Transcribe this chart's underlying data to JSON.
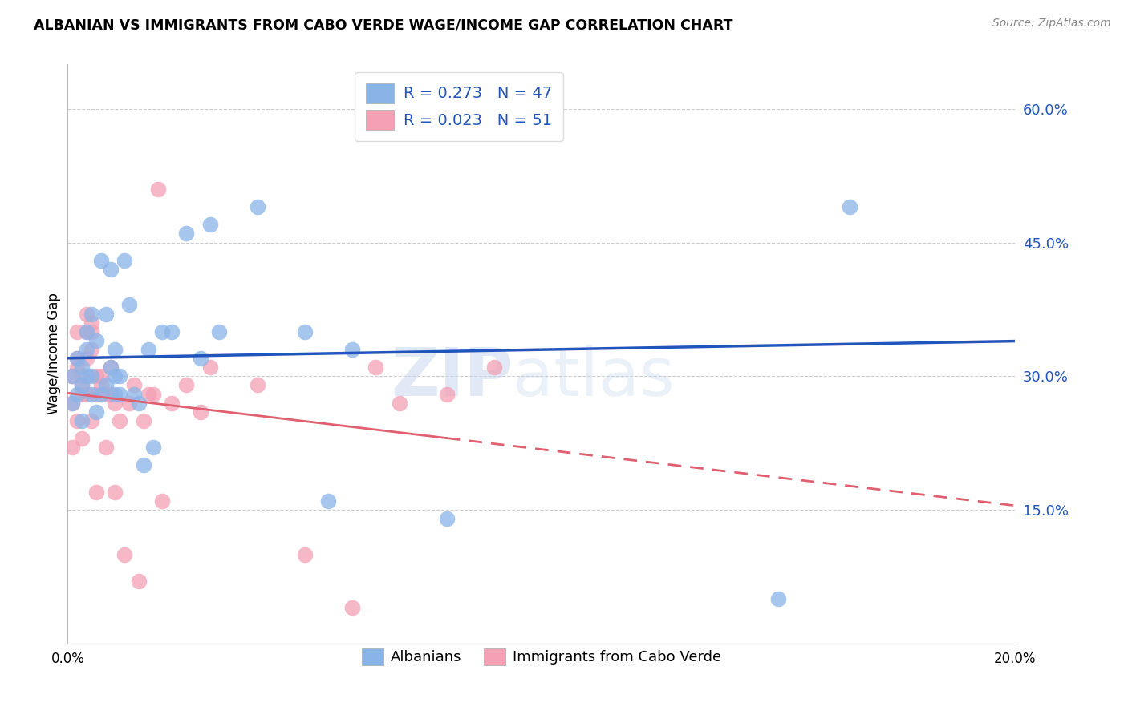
{
  "title": "ALBANIAN VS IMMIGRANTS FROM CABO VERDE WAGE/INCOME GAP CORRELATION CHART",
  "source": "Source: ZipAtlas.com",
  "ylabel": "Wage/Income Gap",
  "y_ticks": [
    0.15,
    0.3,
    0.45,
    0.6
  ],
  "y_tick_labels": [
    "15.0%",
    "30.0%",
    "45.0%",
    "60.0%"
  ],
  "xlim": [
    0.0,
    0.2
  ],
  "ylim": [
    0.0,
    0.65
  ],
  "R_albanian": 0.273,
  "N_albanian": 47,
  "R_caboverde": 0.023,
  "N_caboverde": 51,
  "albanian_color": "#8ab4e8",
  "caboverde_color": "#f4a0b5",
  "albanian_line_color": "#2255bb",
  "caboverde_line_color": "#e06070",
  "watermark_zip": "ZIP",
  "watermark_atlas": "atlas",
  "legend_albanian": "Albanians",
  "legend_caboverde": "Immigrants from Cabo Verde",
  "albanian_x": [
    0.001,
    0.001,
    0.002,
    0.002,
    0.003,
    0.003,
    0.003,
    0.004,
    0.004,
    0.004,
    0.005,
    0.005,
    0.005,
    0.006,
    0.006,
    0.007,
    0.007,
    0.008,
    0.008,
    0.009,
    0.009,
    0.01,
    0.01,
    0.01,
    0.011,
    0.011,
    0.012,
    0.013,
    0.014,
    0.015,
    0.016,
    0.017,
    0.018,
    0.02,
    0.022,
    0.025,
    0.028,
    0.03,
    0.032,
    0.04,
    0.05,
    0.055,
    0.06,
    0.08,
    0.1,
    0.15,
    0.165
  ],
  "albanian_y": [
    0.27,
    0.3,
    0.28,
    0.32,
    0.29,
    0.31,
    0.25,
    0.3,
    0.33,
    0.35,
    0.28,
    0.3,
    0.37,
    0.26,
    0.34,
    0.28,
    0.43,
    0.29,
    0.37,
    0.31,
    0.42,
    0.3,
    0.33,
    0.28,
    0.3,
    0.28,
    0.43,
    0.38,
    0.28,
    0.27,
    0.2,
    0.33,
    0.22,
    0.35,
    0.35,
    0.46,
    0.32,
    0.47,
    0.35,
    0.49,
    0.35,
    0.16,
    0.33,
    0.14,
    0.6,
    0.05,
    0.49
  ],
  "caboverde_x": [
    0.001,
    0.001,
    0.001,
    0.002,
    0.002,
    0.002,
    0.002,
    0.003,
    0.003,
    0.003,
    0.003,
    0.004,
    0.004,
    0.004,
    0.004,
    0.005,
    0.005,
    0.005,
    0.005,
    0.006,
    0.006,
    0.006,
    0.007,
    0.007,
    0.008,
    0.008,
    0.009,
    0.009,
    0.01,
    0.01,
    0.011,
    0.012,
    0.013,
    0.014,
    0.015,
    0.016,
    0.017,
    0.018,
    0.019,
    0.02,
    0.022,
    0.025,
    0.028,
    0.03,
    0.04,
    0.05,
    0.06,
    0.065,
    0.07,
    0.08,
    0.09
  ],
  "caboverde_y": [
    0.27,
    0.3,
    0.22,
    0.32,
    0.31,
    0.35,
    0.25,
    0.3,
    0.29,
    0.28,
    0.23,
    0.35,
    0.37,
    0.32,
    0.28,
    0.35,
    0.36,
    0.33,
    0.25,
    0.28,
    0.3,
    0.17,
    0.29,
    0.3,
    0.28,
    0.22,
    0.28,
    0.31,
    0.27,
    0.17,
    0.25,
    0.1,
    0.27,
    0.29,
    0.07,
    0.25,
    0.28,
    0.28,
    0.51,
    0.16,
    0.27,
    0.29,
    0.26,
    0.31,
    0.29,
    0.1,
    0.04,
    0.31,
    0.27,
    0.28,
    0.31
  ]
}
